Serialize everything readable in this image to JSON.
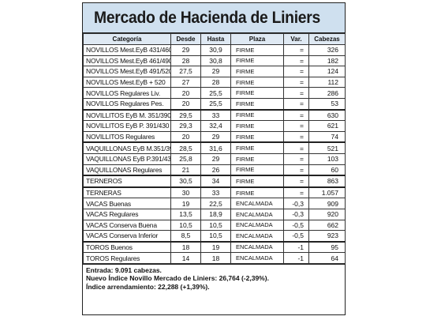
{
  "title": "Mercado de Hacienda de Liniers",
  "headers": [
    "Categoría",
    "Desde",
    "Hasta",
    "Plaza",
    "Var.",
    "Cabezas"
  ],
  "rows": [
    {
      "cat": "NOVILLOS Mest.EyB 431/460",
      "desde": "29",
      "hasta": "30,9",
      "plaza": "FIRME",
      "var": "=",
      "cab": "326",
      "gap": false
    },
    {
      "cat": "NOVILLOS Mest.EyB 461/490",
      "desde": "28",
      "hasta": "30,8",
      "plaza": "FIRME",
      "var": "=",
      "cab": "182",
      "gap": false
    },
    {
      "cat": "NOVILLOS Mest.EyB 491/520",
      "desde": "27,5",
      "hasta": "29",
      "plaza": "FIRME",
      "var": "=",
      "cab": "124",
      "gap": false
    },
    {
      "cat": "NOVILLOS Mest.EyB + 520",
      "desde": "27",
      "hasta": "28",
      "plaza": "FIRME",
      "var": "=",
      "cab": "112",
      "gap": false
    },
    {
      "cat": "NOVILLOS Regulares Liv.",
      "desde": "20",
      "hasta": "25,5",
      "plaza": "FIRME",
      "var": "=",
      "cab": "286",
      "gap": false
    },
    {
      "cat": "NOVILLOS Regulares Pes.",
      "desde": "20",
      "hasta": "25,5",
      "plaza": "FIRME",
      "var": "=",
      "cab": "53",
      "gap": false
    },
    {
      "cat": "NOVILLITOS EyB M. 351/390",
      "desde": "29,5",
      "hasta": "33",
      "plaza": "FIRME",
      "var": "=",
      "cab": "630",
      "gap": true
    },
    {
      "cat": "NOVILLITOS EyB P. 391/430",
      "desde": "29,3",
      "hasta": "32,4",
      "plaza": "FIRME",
      "var": "=",
      "cab": "621",
      "gap": false
    },
    {
      "cat": "NOVILLITOS Regulares",
      "desde": "20",
      "hasta": "29",
      "plaza": "FIRME",
      "var": "=",
      "cab": "74",
      "gap": false
    },
    {
      "cat": "VAQUILLONAS EyB M.351/390",
      "desde": "28,5",
      "hasta": "31,6",
      "plaza": "FIRME",
      "var": "=",
      "cab": "521",
      "gap": true
    },
    {
      "cat": "VAQUILLONAS EyB P.391/430",
      "desde": "25,8",
      "hasta": "29",
      "plaza": "FIRME",
      "var": "=",
      "cab": "103",
      "gap": false
    },
    {
      "cat": "VAQUILLONAS Regulares",
      "desde": "21",
      "hasta": "26",
      "plaza": "FIRME",
      "var": "=",
      "cab": "60",
      "gap": false
    },
    {
      "cat": "TERNEROS",
      "desde": "30,5",
      "hasta": "34",
      "plaza": "FIRME",
      "var": "=",
      "cab": "863",
      "gap": true
    },
    {
      "cat": "TERNERAS",
      "desde": "30",
      "hasta": "33",
      "plaza": "FIRME",
      "var": "=",
      "cab": "1.057",
      "gap": true
    },
    {
      "cat": "VACAS Buenas",
      "desde": "19",
      "hasta": "22,5",
      "plaza": "ENCALMADA",
      "var": "-0,3",
      "cab": "909",
      "gap": false
    },
    {
      "cat": "VACAS Regulares",
      "desde": "13,5",
      "hasta": "18,9",
      "plaza": "ENCALMADA",
      "var": "-0,3",
      "cab": "920",
      "gap": false
    },
    {
      "cat": "VACAS Conserva Buena",
      "desde": "10,5",
      "hasta": "10,5",
      "plaza": "ENCALMADA",
      "var": "-0,5",
      "cab": "662",
      "gap": false
    },
    {
      "cat": "VACAS Conserva Inferior",
      "desde": "8,5",
      "hasta": "10,5",
      "plaza": "ENCALMADA",
      "var": "-0,5",
      "cab": "923",
      "gap": false
    },
    {
      "cat": "TOROS Buenos",
      "desde": "18",
      "hasta": "19",
      "plaza": "ENCALMADA",
      "var": "-1",
      "cab": "95",
      "gap": true
    },
    {
      "cat": "TOROS Regulares",
      "desde": "14",
      "hasta": "18",
      "plaza": "ENCALMADA",
      "var": "-1",
      "cab": "64",
      "gap": false
    }
  ],
  "footer": [
    "Entrada: 9.091 cabezas.",
    "Nuevo Índice Novillo Mercado de Liniers: 26,764 (-2,39%).",
    "Índice arrendamiento: 22,288 (+1,39%)."
  ]
}
